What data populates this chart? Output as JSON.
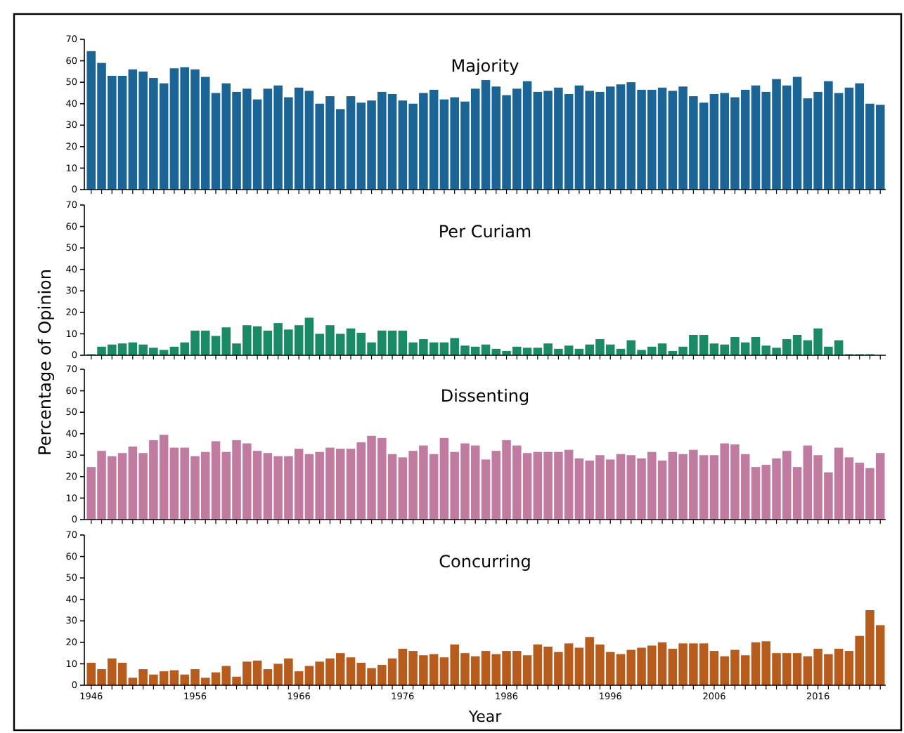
{
  "chart_data": [
    {
      "type": "bar",
      "title": "Majority",
      "categories": [
        "1946",
        null,
        null,
        null,
        null,
        null,
        null,
        null,
        null,
        null,
        "1956",
        null,
        null,
        null,
        null,
        null,
        null,
        null,
        null,
        null,
        "1966",
        null,
        null,
        null,
        null,
        null,
        null,
        null,
        null,
        null,
        "1976",
        null,
        null,
        null,
        null,
        null,
        null,
        null,
        null,
        null,
        "1986",
        null,
        null,
        null,
        null,
        null,
        null,
        null,
        null,
        null,
        "1996",
        null,
        null,
        null,
        null,
        null,
        null,
        null,
        null,
        null,
        "2006",
        null,
        null,
        null,
        null,
        null,
        null,
        null,
        null,
        null,
        "2016",
        null,
        null,
        null,
        null,
        null,
        null
      ],
      "tick_labels": "y",
      "ylim": [
        0,
        70
      ],
      "yticks": [
        0,
        10,
        20,
        30,
        40,
        50,
        60,
        70
      ],
      "color": "#1a6496",
      "values": [
        64.5,
        59,
        53,
        53,
        56,
        55,
        52,
        49.5,
        56.5,
        57,
        56,
        52.5,
        45,
        49.5,
        45.5,
        47,
        42,
        47,
        48.5,
        43,
        47.5,
        46,
        40,
        43.5,
        37.5,
        43.5,
        40.5,
        41.5,
        45.5,
        44.5,
        41.5,
        40,
        45,
        46.5,
        42,
        43,
        41,
        47,
        51,
        48,
        44,
        47,
        50.5,
        45.5,
        46,
        47.5,
        44.5,
        48.5,
        46,
        45.5,
        48,
        49,
        50,
        46.5,
        46.5,
        47.5,
        46,
        48,
        43.5,
        40.5,
        44.5,
        45,
        43,
        46.5,
        48.5,
        45.5,
        51.5,
        48.5,
        52.5,
        42.5,
        45.5,
        50.5,
        45,
        47.5,
        49.5,
        40,
        39.5
      ]
    },
    {
      "type": "bar",
      "title": "Per Curiam",
      "ylabel": "Percentage of Opinion",
      "categories": [
        "1946",
        null,
        null,
        null,
        null,
        null,
        null,
        null,
        null,
        null,
        "1956",
        null,
        null,
        null,
        null,
        null,
        null,
        null,
        null,
        null,
        "1966",
        null,
        null,
        null,
        null,
        null,
        null,
        null,
        null,
        null,
        "1976",
        null,
        null,
        null,
        null,
        null,
        null,
        null,
        null,
        null,
        "1986",
        null,
        null,
        null,
        null,
        null,
        null,
        null,
        null,
        null,
        "1996",
        null,
        null,
        null,
        null,
        null,
        null,
        null,
        null,
        null,
        "2006",
        null,
        null,
        null,
        null,
        null,
        null,
        null,
        null,
        null,
        "2016",
        null,
        null,
        null,
        null,
        null,
        null
      ],
      "tick_labels": "y",
      "ylim": [
        0,
        70
      ],
      "yticks": [
        0,
        10,
        20,
        30,
        40,
        50,
        60,
        70
      ],
      "color": "#1a8a66",
      "values": [
        0.5,
        4,
        5,
        5.5,
        6,
        5,
        3.5,
        2.5,
        4,
        6,
        11.5,
        11.5,
        9,
        13,
        5.5,
        14,
        13.5,
        11.5,
        15,
        12,
        14,
        17.5,
        10,
        14,
        10,
        12.5,
        10.5,
        6,
        11.5,
        11.5,
        11.5,
        6,
        7.5,
        6,
        6,
        8,
        4.5,
        4,
        5,
        3,
        2,
        4,
        3.5,
        3.5,
        5.5,
        3,
        4.5,
        3,
        5,
        7.5,
        5,
        3,
        7,
        2.5,
        4,
        5.5,
        2,
        4,
        9.5,
        9.5,
        5.5,
        5,
        8.5,
        6,
        8.5,
        4.5,
        3.5,
        7.5,
        9.5,
        7,
        12.5,
        4,
        7,
        0.5,
        0.5,
        0.5,
        0
      ]
    },
    {
      "type": "bar",
      "title": "Dissenting",
      "categories": [
        "1946",
        null,
        null,
        null,
        null,
        null,
        null,
        null,
        null,
        null,
        "1956",
        null,
        null,
        null,
        null,
        null,
        null,
        null,
        null,
        null,
        "1966",
        null,
        null,
        null,
        null,
        null,
        null,
        null,
        null,
        null,
        "1976",
        null,
        null,
        null,
        null,
        null,
        null,
        null,
        null,
        null,
        "1986",
        null,
        null,
        null,
        null,
        null,
        null,
        null,
        null,
        null,
        "1996",
        null,
        null,
        null,
        null,
        null,
        null,
        null,
        null,
        null,
        "2006",
        null,
        null,
        null,
        null,
        null,
        null,
        null,
        null,
        null,
        "2016",
        null,
        null,
        null,
        null,
        null,
        null
      ],
      "tick_labels": "y",
      "ylim": [
        0,
        70
      ],
      "yticks": [
        0,
        10,
        20,
        30,
        40,
        50,
        60,
        70
      ],
      "color": "#c27ba0",
      "values": [
        24.5,
        32,
        29.5,
        31,
        34,
        31,
        37,
        39.5,
        33.5,
        33.5,
        29.5,
        31.5,
        36.5,
        31.5,
        37,
        35.5,
        32,
        31,
        29.5,
        29.5,
        33,
        30.5,
        31.5,
        33.5,
        33,
        33,
        36,
        39,
        38,
        30.5,
        29,
        32,
        34.5,
        30.5,
        38,
        31.5,
        35.5,
        34.5,
        28,
        32,
        37,
        34.5,
        31,
        31.5,
        31.5,
        31.5,
        32.5,
        28.5,
        27.5,
        30,
        28,
        30.5,
        30,
        28.5,
        31.5,
        27.5,
        31.5,
        30.5,
        32.5,
        30,
        30,
        35.5,
        35,
        30.5,
        24.5,
        25.5,
        28.5,
        32,
        24.5,
        34.5,
        30,
        22,
        33.5,
        29,
        26.5,
        24,
        31
      ]
    },
    {
      "type": "bar",
      "title": "Concurring",
      "xlabel": "Year",
      "categories": [
        "1946",
        null,
        null,
        null,
        null,
        null,
        null,
        null,
        null,
        null,
        "1956",
        null,
        null,
        null,
        null,
        null,
        null,
        null,
        null,
        null,
        "1966",
        null,
        null,
        null,
        null,
        null,
        null,
        null,
        null,
        null,
        "1976",
        null,
        null,
        null,
        null,
        null,
        null,
        null,
        null,
        null,
        "1986",
        null,
        null,
        null,
        null,
        null,
        null,
        null,
        null,
        null,
        "1996",
        null,
        null,
        null,
        null,
        null,
        null,
        null,
        null,
        null,
        "2006",
        null,
        null,
        null,
        null,
        null,
        null,
        null,
        null,
        null,
        "2016",
        null,
        null,
        null,
        null,
        null,
        null
      ],
      "ylim": [
        0,
        70
      ],
      "yticks": [
        0,
        10,
        20,
        30,
        40,
        50,
        60,
        70
      ],
      "color": "#b85c1e",
      "values": [
        10.5,
        7.5,
        12.5,
        10.5,
        3.5,
        7.5,
        5,
        6.5,
        7,
        5,
        7.5,
        3.5,
        6,
        9,
        4,
        11,
        11.5,
        7.5,
        10,
        12.5,
        6.5,
        9,
        11,
        12.5,
        15,
        13,
        10.5,
        8,
        9.5,
        12.5,
        17,
        16,
        14,
        14.5,
        13,
        19,
        15,
        13.5,
        16,
        14.5,
        16,
        16,
        14,
        19,
        18,
        15.5,
        19.5,
        17.5,
        22.5,
        19,
        15.5,
        14.5,
        16.5,
        17.5,
        18.5,
        20,
        17,
        19.5,
        19.5,
        19.5,
        16,
        13.5,
        16.5,
        14,
        20,
        20.5,
        15,
        15,
        15,
        13.5,
        17,
        14.5,
        17,
        16,
        23,
        35,
        28
      ]
    }
  ]
}
